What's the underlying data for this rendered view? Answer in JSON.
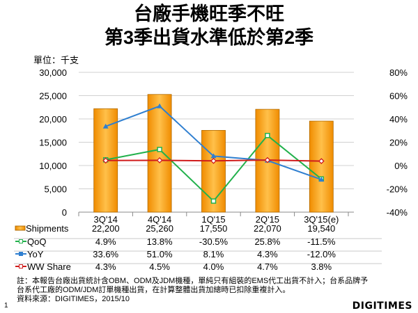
{
  "title_line1": "台廠手機旺季不旺",
  "title_line2": "第3季出貨水準低於第2季",
  "unit_label": "單位：千支",
  "note_line1": "註：本報告台廠出貨統計含OBM、ODM及JDM機種，單純只有組裝的EMS代工出貨不計入；台系品牌予",
  "note_line2": "台系代工廠的ODM/JDM訂單機種出貨，在計算整體出貨加總時已扣除重複計入。",
  "source": "資料來源：DIGITIMES，2015/10",
  "page_number": "1",
  "logo": "DIGITIMES",
  "chart_data": {
    "type": "bar",
    "categories": [
      "3Q'14",
      "4Q'14",
      "1Q'15",
      "2Q'15",
      "3Q'15(e)"
    ],
    "left_axis": {
      "ylim": [
        0,
        30000
      ],
      "ticks": [
        "0",
        "5,000",
        "10,000",
        "15,000",
        "20,000",
        "25,000",
        "30,000"
      ],
      "tick_values": [
        0,
        5000,
        10000,
        15000,
        20000,
        25000,
        30000
      ]
    },
    "right_axis": {
      "ylim": [
        -40,
        80
      ],
      "ticks": [
        "-40%",
        "-20%",
        "0%",
        "20%",
        "40%",
        "60%",
        "80%"
      ],
      "tick_values": [
        -40,
        -20,
        0,
        20,
        40,
        60,
        80
      ]
    },
    "series": [
      {
        "name": "Shipments",
        "type": "bar",
        "axis": "left",
        "color": "#f5a31f",
        "values": [
          22200,
          25260,
          17550,
          22070,
          19540
        ],
        "labels": [
          "22,200",
          "25,260",
          "17,550",
          "22,070",
          "19,540"
        ]
      },
      {
        "name": "QoQ",
        "type": "line",
        "axis": "right",
        "marker": "square",
        "color": "#22b14c",
        "values": [
          4.9,
          13.8,
          -30.5,
          25.8,
          -11.5
        ],
        "labels": [
          "4.9%",
          "13.8%",
          "-30.5%",
          "25.8%",
          "-11.5%"
        ]
      },
      {
        "name": "YoY",
        "type": "line",
        "axis": "right",
        "marker": "triangle",
        "color": "#2f7fd0",
        "values": [
          33.6,
          51.0,
          8.1,
          4.3,
          -12.0
        ],
        "labels": [
          "33.6%",
          "51.0%",
          "8.1%",
          "4.3%",
          "-12.0%"
        ]
      },
      {
        "name": "WW Share",
        "type": "line",
        "axis": "right",
        "marker": "diamond",
        "color": "#d01c1c",
        "values": [
          4.3,
          4.5,
          4.0,
          4.7,
          3.8
        ],
        "labels": [
          "4.3%",
          "4.5%",
          "4.0%",
          "4.7%",
          "3.8%"
        ]
      }
    ],
    "grid": true,
    "legend": "data-table"
  }
}
